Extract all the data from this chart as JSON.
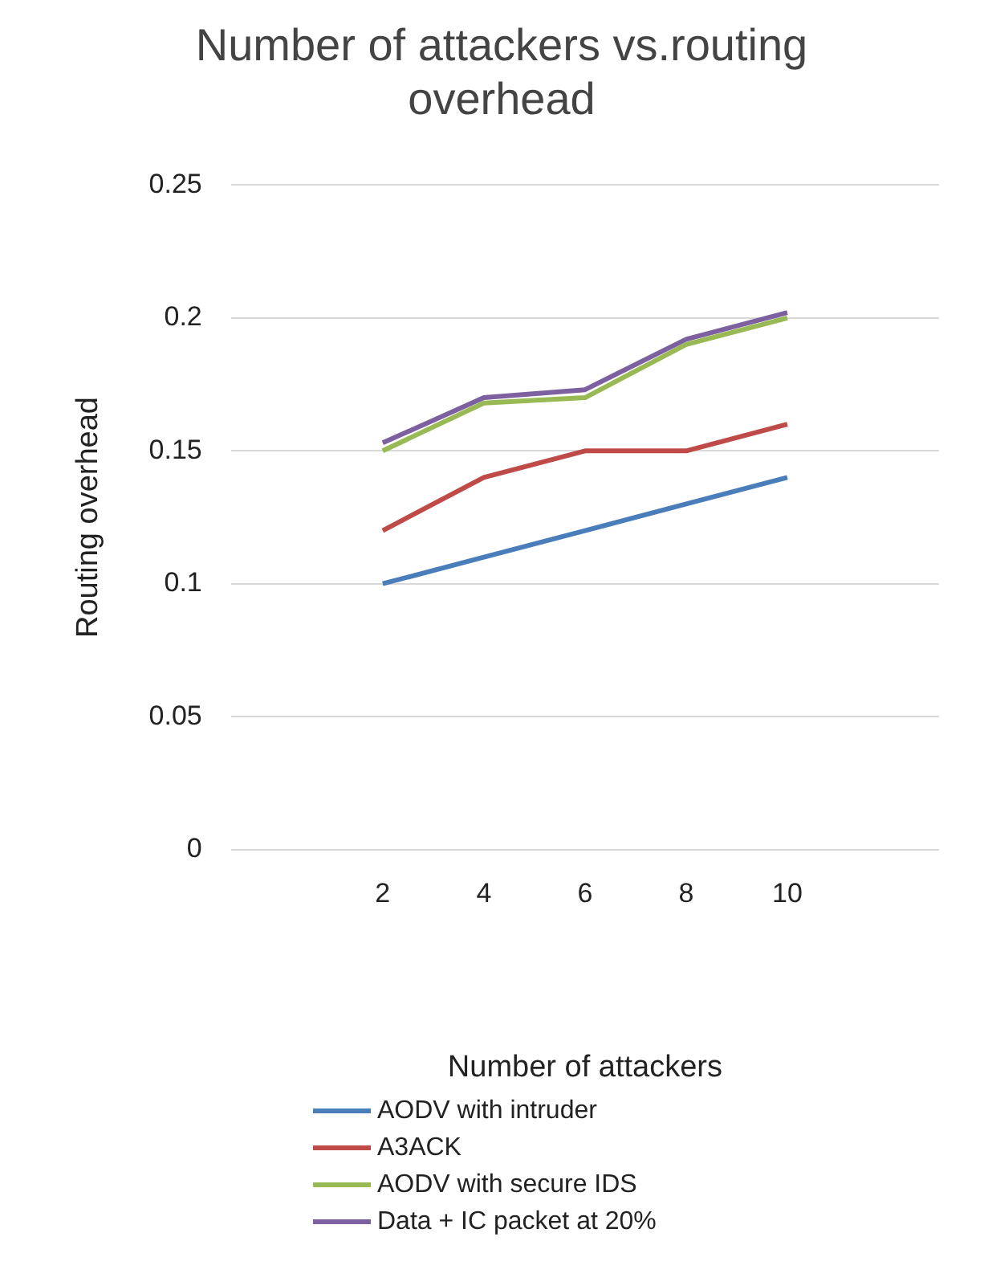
{
  "chart_data": {
    "type": "line",
    "title": "Number of attackers vs.routing overhead",
    "xlabel": "Number of attackers",
    "ylabel": "Routing overhead",
    "categories": [
      null,
      "2",
      "4",
      "6",
      "8",
      "10",
      null
    ],
    "series": [
      {
        "name": "AODV with intruder",
        "color": "#4a7ebb",
        "values": [
          null,
          0.1,
          0.11,
          0.12,
          0.13,
          0.14,
          null
        ]
      },
      {
        "name": "A3ACK",
        "color": "#be4b48",
        "values": [
          null,
          0.12,
          0.14,
          0.15,
          0.15,
          0.16,
          null
        ]
      },
      {
        "name": "AODV with secure IDS",
        "color": "#98b954",
        "values": [
          null,
          0.15,
          0.168,
          0.17,
          0.19,
          0.2,
          null
        ]
      },
      {
        "name": "Data + IC packet at 20%",
        "color": "#7d60a0",
        "values": [
          null,
          0.153,
          0.17,
          0.173,
          0.192,
          0.202,
          null
        ]
      }
    ],
    "ylim": [
      0,
      0.25
    ],
    "yticks": [
      0,
      0.05,
      0.1,
      0.15,
      0.2,
      0.25
    ],
    "grid": "y",
    "legend": "bottom",
    "marker": "none",
    "line_style": "solid"
  }
}
